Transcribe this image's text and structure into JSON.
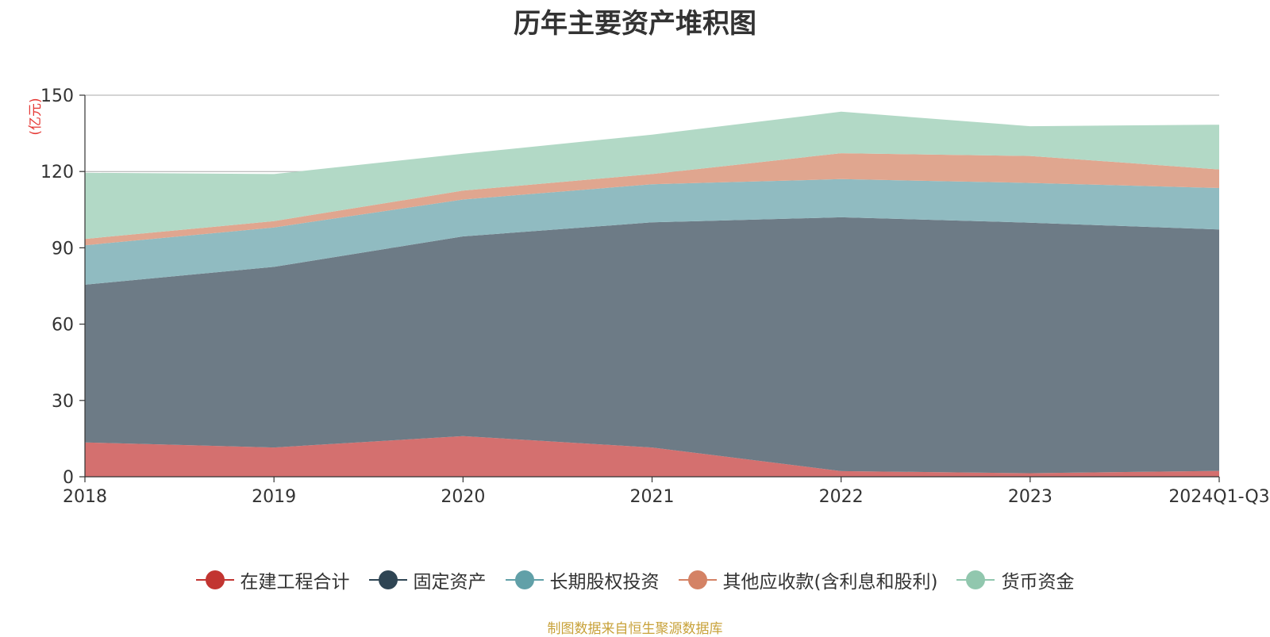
{
  "title": "历年主要资产堆积图",
  "source_note": "制图数据来自恒生聚源数据库",
  "colors": {
    "background": "#ffffff",
    "axis": "#333333",
    "grid": "#aaaaaa",
    "unit_label": "#e53935",
    "source_note": "#c8a23a"
  },
  "chart_data": {
    "type": "area",
    "stacked": true,
    "title": "历年主要资产堆积图",
    "ylabel": "(亿元)",
    "xlabel": "",
    "ylim": [
      0,
      150
    ],
    "yticks": [
      0,
      30,
      60,
      90,
      120,
      150
    ],
    "categories": [
      "2018",
      "2019",
      "2020",
      "2021",
      "2022",
      "2023",
      "2024Q1-Q3"
    ],
    "grid": true,
    "legend_position": "bottom",
    "series": [
      {
        "name": "在建工程合计",
        "color": "#c23531",
        "area_color": "#d4706f",
        "values": [
          13.5,
          11.5,
          16.0,
          11.5,
          2.2,
          1.4,
          2.3
        ]
      },
      {
        "name": "固定资产",
        "color": "#2f4554",
        "area_color": "#6d7b86",
        "values": [
          62.0,
          71.0,
          78.5,
          88.5,
          99.8,
          98.5,
          94.9
        ]
      },
      {
        "name": "长期股权投资",
        "color": "#61a0a8",
        "area_color": "#90bbc1",
        "values": [
          15.5,
          15.5,
          14.5,
          15.0,
          15.0,
          15.6,
          16.3
        ]
      },
      {
        "name": "其他应收款(含利息和股利)",
        "color": "#d48265",
        "area_color": "#e0a68f",
        "values": [
          2.5,
          2.5,
          3.5,
          4.0,
          10.2,
          10.6,
          7.3
        ]
      },
      {
        "name": "货币资金",
        "color": "#91c7ae",
        "area_color": "#b2d9c6",
        "values": [
          26.0,
          18.5,
          14.5,
          15.5,
          16.3,
          11.7,
          17.6
        ]
      }
    ]
  }
}
